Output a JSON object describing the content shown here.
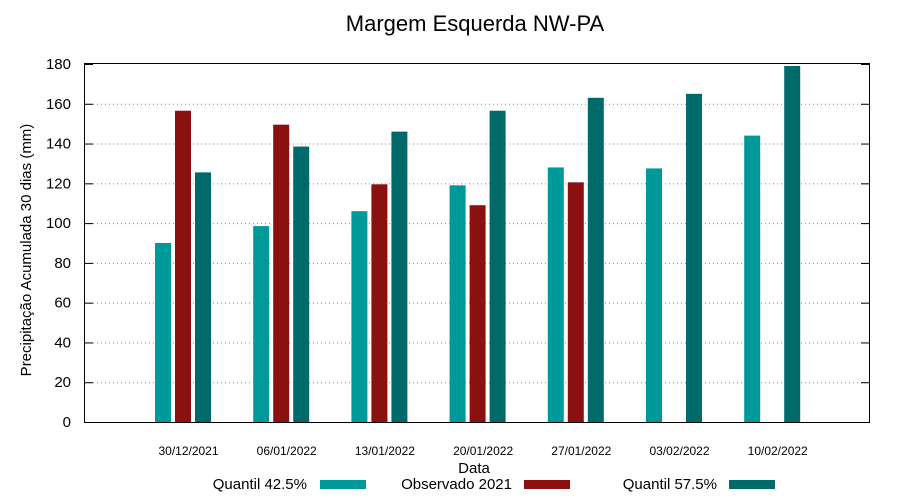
{
  "chart_data": {
    "type": "bar",
    "title": "Margem Esquerda NW-PA",
    "xlabel": "Data",
    "ylabel": "Precipitação Acumulada 30 dias (mm)",
    "ylim": [
      0,
      180
    ],
    "yticks": [
      0,
      20,
      40,
      60,
      80,
      100,
      120,
      140,
      160,
      180
    ],
    "grid": "horizontal-dotted",
    "legend_position": "bottom",
    "categories": [
      "30/12/2021",
      "06/01/2022",
      "13/01/2022",
      "20/01/2022",
      "27/01/2022",
      "03/02/2022",
      "10/02/2022"
    ],
    "series": [
      {
        "name": "Quantil 42.5%",
        "color": "#009999",
        "values": [
          90,
          98.5,
          106,
          119,
          128,
          127.5,
          144
        ]
      },
      {
        "name": "Observado 2021",
        "color": "#8b1111",
        "values": [
          156.5,
          149.5,
          119.5,
          109,
          120.5,
          null,
          null
        ]
      },
      {
        "name": "Quantil 57.5%",
        "color": "#006a6a",
        "values": [
          125.5,
          138.5,
          146,
          156.5,
          163,
          165,
          179
        ]
      }
    ]
  }
}
